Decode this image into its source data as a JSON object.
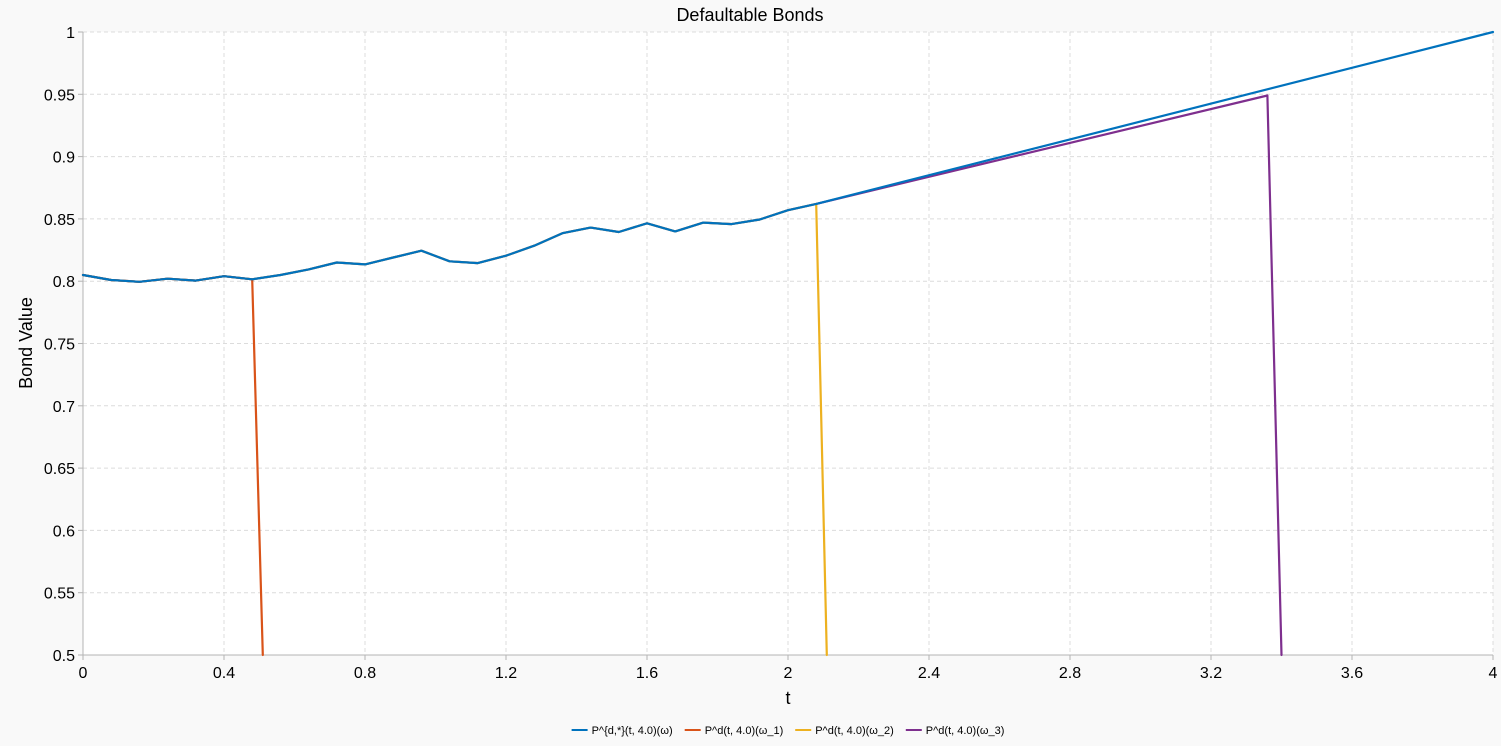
{
  "chart_data": {
    "type": "line",
    "title": "Defaultable Bonds",
    "xlabel": "t",
    "ylabel": "Bond Value",
    "xlim": [
      0,
      4
    ],
    "ylim": [
      0.5,
      1
    ],
    "x_ticks": [
      0,
      0.4,
      0.8,
      1.2,
      1.6,
      2,
      2.4,
      2.8,
      3.2,
      3.6,
      4
    ],
    "y_ticks": [
      0.5,
      0.55,
      0.6,
      0.65,
      0.7,
      0.75,
      0.8,
      0.85,
      0.9,
      0.95,
      1
    ],
    "x_tick_labels": [
      "0",
      "0.4",
      "0.8",
      "1.2",
      "1.6",
      "2",
      "2.4",
      "2.8",
      "3.2",
      "3.6",
      "4"
    ],
    "y_tick_labels": [
      "0.5",
      "0.55",
      "0.6",
      "0.65",
      "0.7",
      "0.75",
      "0.8",
      "0.85",
      "0.9",
      "0.95",
      "1"
    ],
    "grid": true,
    "legend_position": "bottom-center",
    "series": [
      {
        "name": "P^{d,*}(t, 4.0)(ω)",
        "color": "#0072bd",
        "x": [
          0,
          0.08,
          0.16,
          0.24,
          0.32,
          0.4,
          0.48,
          0.56,
          0.64,
          0.72,
          0.8,
          0.88,
          0.96,
          1.04,
          1.12,
          1.2,
          1.28,
          1.36,
          1.44,
          1.52,
          1.6,
          1.68,
          1.76,
          1.84,
          1.92,
          2.0,
          2.08,
          4.0
        ],
        "y": [
          0.805,
          0.801,
          0.7995,
          0.802,
          0.8005,
          0.804,
          0.8015,
          0.805,
          0.8095,
          0.815,
          0.8135,
          0.819,
          0.8245,
          0.816,
          0.8145,
          0.8205,
          0.8285,
          0.8385,
          0.843,
          0.8395,
          0.8465,
          0.84,
          0.847,
          0.8458,
          0.8495,
          0.857,
          0.862,
          1.0
        ]
      },
      {
        "name": "P^d(t, 4.0)(ω_1)",
        "color": "#d95319",
        "x": [
          0,
          0.08,
          0.16,
          0.24,
          0.32,
          0.4,
          0.48,
          0.51
        ],
        "y": [
          0.805,
          0.801,
          0.7995,
          0.802,
          0.8005,
          0.804,
          0.8015,
          0.5
        ]
      },
      {
        "name": "P^d(t, 4.0)(ω_2)",
        "color": "#edb120",
        "x": [
          0,
          0.08,
          0.16,
          0.24,
          0.32,
          0.4,
          0.48,
          0.56,
          0.64,
          0.72,
          0.8,
          0.88,
          0.96,
          1.04,
          1.12,
          1.2,
          1.28,
          1.36,
          1.44,
          1.52,
          1.6,
          1.68,
          1.76,
          1.84,
          1.92,
          2.0,
          2.08,
          2.11
        ],
        "y": [
          0.805,
          0.801,
          0.7995,
          0.802,
          0.8005,
          0.804,
          0.8015,
          0.805,
          0.8095,
          0.815,
          0.8135,
          0.819,
          0.8245,
          0.816,
          0.8145,
          0.8205,
          0.8285,
          0.8385,
          0.843,
          0.8395,
          0.8465,
          0.84,
          0.847,
          0.8458,
          0.8495,
          0.857,
          0.862,
          0.5
        ]
      },
      {
        "name": "P^d(t, 4.0)(ω_3)",
        "color": "#7e2f8e",
        "x": [
          0,
          0.08,
          0.16,
          0.24,
          0.32,
          0.4,
          0.48,
          0.56,
          0.64,
          0.72,
          0.8,
          0.88,
          0.96,
          1.04,
          1.12,
          1.2,
          1.28,
          1.36,
          1.44,
          1.52,
          1.6,
          1.68,
          1.76,
          1.84,
          1.92,
          2.0,
          2.08,
          3.36,
          3.4
        ],
        "y": [
          0.805,
          0.801,
          0.7995,
          0.802,
          0.8005,
          0.804,
          0.8015,
          0.805,
          0.8095,
          0.815,
          0.8135,
          0.819,
          0.8245,
          0.816,
          0.8145,
          0.8205,
          0.8285,
          0.8385,
          0.843,
          0.8395,
          0.8465,
          0.84,
          0.847,
          0.8458,
          0.8495,
          0.857,
          0.862,
          0.949,
          0.5
        ]
      }
    ]
  }
}
